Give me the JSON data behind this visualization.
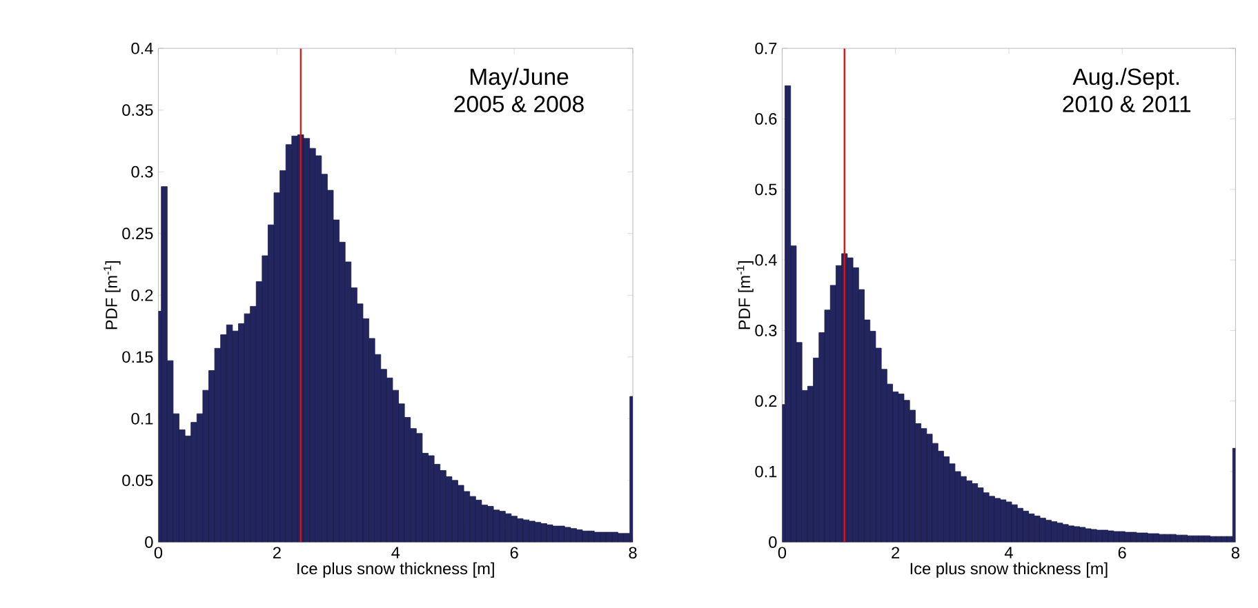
{
  "chart_data": [
    {
      "type": "histogram",
      "color": "#23255f",
      "bins": [
        0,
        0.05,
        0.15,
        0.25,
        0.35,
        0.45,
        0.55,
        0.65,
        0.75,
        0.85,
        0.95,
        1.05,
        1.15,
        1.25,
        1.35,
        1.45,
        1.55,
        1.65,
        1.75,
        1.85,
        1.95,
        2.05,
        2.15,
        2.25,
        2.35,
        2.45,
        2.55,
        2.65,
        2.75,
        2.85,
        2.95,
        3.05,
        3.15,
        3.25,
        3.35,
        3.45,
        3.55,
        3.65,
        3.75,
        3.85,
        3.95,
        4.05,
        4.15,
        4.25,
        4.35,
        4.45,
        4.55,
        4.65,
        4.75,
        4.85,
        4.95,
        5.05,
        5.15,
        5.25,
        5.35,
        5.45,
        5.55,
        5.65,
        5.75,
        5.85,
        5.95,
        6.05,
        6.15,
        6.25,
        6.35,
        6.45,
        6.55,
        6.65,
        6.75,
        6.85,
        6.95,
        7.05,
        7.15,
        7.25,
        7.35,
        7.45,
        7.55,
        7.65,
        7.75,
        7.85,
        7.95,
        8
      ],
      "values": [
        0.187,
        0.288,
        0.147,
        0.104,
        0.091,
        0.086,
        0.097,
        0.104,
        0.123,
        0.139,
        0.157,
        0.168,
        0.176,
        0.171,
        0.177,
        0.185,
        0.191,
        0.211,
        0.232,
        0.257,
        0.283,
        0.301,
        0.322,
        0.329,
        0.33,
        0.327,
        0.319,
        0.313,
        0.298,
        0.285,
        0.261,
        0.243,
        0.227,
        0.206,
        0.193,
        0.181,
        0.165,
        0.152,
        0.14,
        0.133,
        0.123,
        0.112,
        0.101,
        0.092,
        0.088,
        0.072,
        0.07,
        0.063,
        0.058,
        0.053,
        0.05,
        0.046,
        0.041,
        0.037,
        0.034,
        0.03,
        0.029,
        0.026,
        0.025,
        0.023,
        0.021,
        0.019,
        0.018,
        0.017,
        0.016,
        0.015,
        0.014,
        0.013,
        0.013,
        0.012,
        0.011,
        0.01,
        0.009,
        0.009,
        0.008,
        0.008,
        0.008,
        0.008,
        0.007,
        0.007,
        0.118
      ],
      "xlim": [
        0,
        8
      ],
      "ylim": [
        0,
        0.4
      ],
      "xticks": [
        0,
        2,
        4,
        6,
        8
      ],
      "yticks": [
        0,
        0.05,
        0.1,
        0.15,
        0.2,
        0.25,
        0.3,
        0.35,
        0.4
      ],
      "xlabel": "Ice plus snow thickness [m]",
      "ylabel": "PDF [m$^{-1}$]",
      "annotations": [
        "May/June",
        "2005 & 2008"
      ],
      "ref_lines": [
        {
          "axis": "x",
          "value": 2.4,
          "color": "#e01010"
        }
      ]
    },
    {
      "type": "histogram",
      "color": "#23255f",
      "bins": [
        0,
        0.05,
        0.15,
        0.25,
        0.35,
        0.45,
        0.55,
        0.65,
        0.75,
        0.85,
        0.95,
        1.05,
        1.15,
        1.25,
        1.35,
        1.45,
        1.55,
        1.65,
        1.75,
        1.85,
        1.95,
        2.05,
        2.15,
        2.25,
        2.35,
        2.45,
        2.55,
        2.65,
        2.75,
        2.85,
        2.95,
        3.05,
        3.15,
        3.25,
        3.35,
        3.45,
        3.55,
        3.65,
        3.75,
        3.85,
        3.95,
        4.05,
        4.15,
        4.25,
        4.35,
        4.45,
        4.55,
        4.65,
        4.75,
        4.85,
        4.95,
        5.05,
        5.15,
        5.25,
        5.35,
        5.45,
        5.55,
        5.65,
        5.75,
        5.85,
        5.95,
        6.05,
        6.15,
        6.25,
        6.35,
        6.45,
        6.55,
        6.65,
        6.75,
        6.85,
        6.95,
        7.05,
        7.15,
        7.25,
        7.35,
        7.45,
        7.55,
        7.65,
        7.75,
        7.85,
        7.95,
        8
      ],
      "values": [
        0.195,
        0.647,
        0.42,
        0.283,
        0.215,
        0.221,
        0.261,
        0.297,
        0.329,
        0.364,
        0.392,
        0.409,
        0.403,
        0.389,
        0.358,
        0.315,
        0.299,
        0.275,
        0.245,
        0.224,
        0.213,
        0.21,
        0.201,
        0.187,
        0.168,
        0.161,
        0.153,
        0.14,
        0.129,
        0.121,
        0.111,
        0.1,
        0.093,
        0.087,
        0.083,
        0.077,
        0.07,
        0.065,
        0.062,
        0.06,
        0.057,
        0.053,
        0.048,
        0.044,
        0.04,
        0.037,
        0.034,
        0.031,
        0.029,
        0.027,
        0.025,
        0.023,
        0.022,
        0.021,
        0.019,
        0.018,
        0.017,
        0.017,
        0.016,
        0.015,
        0.015,
        0.014,
        0.014,
        0.013,
        0.013,
        0.012,
        0.012,
        0.011,
        0.011,
        0.011,
        0.01,
        0.01,
        0.009,
        0.009,
        0.009,
        0.009,
        0.008,
        0.008,
        0.008,
        0.008,
        0.133
      ],
      "xlim": [
        0,
        8
      ],
      "ylim": [
        0,
        0.7
      ],
      "xticks": [
        0,
        2,
        4,
        6,
        8
      ],
      "yticks": [
        0,
        0.1,
        0.2,
        0.3,
        0.4,
        0.5,
        0.6,
        0.7
      ],
      "xlabel": "Ice plus snow thickness [m]",
      "ylabel": "PDF [m$^{-1}$]",
      "annotations": [
        "Aug./Sept.",
        "2010 & 2011"
      ],
      "ref_lines": [
        {
          "axis": "x",
          "value": 1.1,
          "color": "#e01010"
        }
      ]
    }
  ]
}
